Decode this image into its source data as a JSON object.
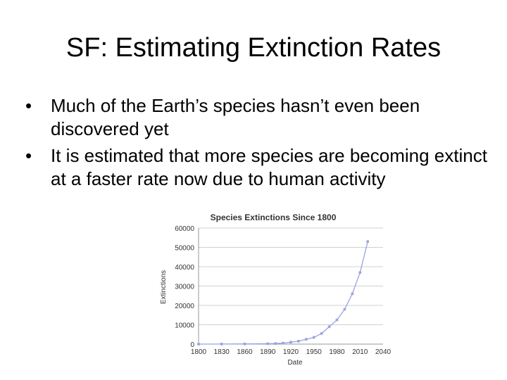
{
  "slide": {
    "title": "SF: Estimating Extinction Rates",
    "bullets": [
      "Much of the Earth’s species hasn’t even been discovered yet",
      "It is estimated that more species are becoming extinct at a faster rate now due to human activity"
    ],
    "bullet_glyph": "•"
  },
  "chart_data": {
    "type": "line",
    "title": "Species Extinctions Since 1800",
    "xlabel": "Date",
    "ylabel": "Extinctions",
    "xlim": [
      1800,
      2040
    ],
    "ylim": [
      0,
      60000
    ],
    "xticks": [
      1800,
      1830,
      1860,
      1890,
      1920,
      1950,
      1980,
      2010,
      2040
    ],
    "yticks": [
      0,
      10000,
      20000,
      30000,
      40000,
      50000,
      60000
    ],
    "grid": true,
    "series": [
      {
        "color": "#9aa3e0",
        "x": [
          1800,
          1830,
          1860,
          1890,
          1900,
          1910,
          1920,
          1930,
          1940,
          1950,
          1960,
          1970,
          1980,
          1990,
          2000,
          2010,
          2020
        ],
        "y": [
          0,
          50,
          100,
          200,
          300,
          500,
          1000,
          1500,
          2500,
          3500,
          5500,
          9000,
          12500,
          18000,
          26000,
          37000,
          53000
        ]
      }
    ]
  }
}
